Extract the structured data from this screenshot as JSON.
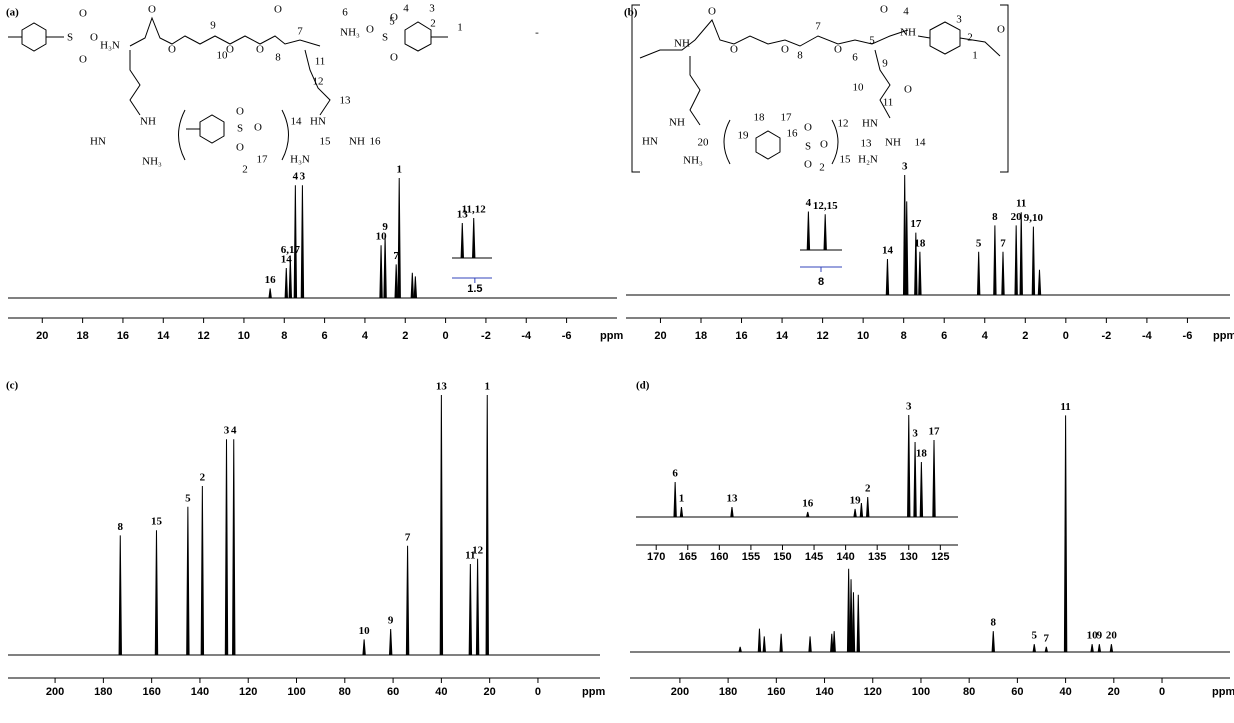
{
  "panels": [
    {
      "label": "(a)",
      "axis_title": "ppm",
      "xlim": [
        21.7,
        -8.5
      ],
      "xticks": [
        20,
        18,
        16,
        14,
        12,
        10,
        8,
        6,
        4,
        2,
        0,
        -2,
        -4,
        -6
      ],
      "peaks": [
        {
          "label": "16",
          "x": 8.7,
          "h": 8
        },
        {
          "label": "14",
          "x": 7.9,
          "h": 25
        },
        {
          "label": "6,17",
          "x": 7.7,
          "h": 33
        },
        {
          "label": "4",
          "x": 7.45,
          "h": 94
        },
        {
          "label": "3",
          "x": 7.1,
          "h": 94
        },
        {
          "label": "10",
          "x": 3.2,
          "h": 44
        },
        {
          "label": "9",
          "x": 3.0,
          "h": 52
        },
        {
          "label": "7",
          "x": 2.45,
          "h": 28
        },
        {
          "label": "1",
          "x": 2.3,
          "h": 100
        },
        {
          "label": null,
          "x": 1.65,
          "h": 21
        },
        {
          "label": null,
          "x": 1.5,
          "h": 18
        }
      ],
      "inset": {
        "xlim": [
          1.9,
          1.2
        ],
        "xticks": [
          1.5
        ],
        "peaks": [
          {
            "label": "13",
            "x": 1.72,
            "h": 70
          },
          {
            "label": "11,12",
            "x": 1.52,
            "h": 80
          }
        ]
      },
      "structure_labels": [
        "S",
        "O",
        "O",
        "O",
        "H₃N",
        "O",
        "O",
        "9",
        "O",
        "10",
        "O",
        "8",
        "O",
        "7",
        "6",
        "NH₃",
        "O",
        "S",
        "O",
        "O",
        "4",
        "5",
        "3",
        "2",
        "1",
        "11",
        "12",
        "13",
        "NH",
        "HN",
        "NH₃",
        "14",
        "HN",
        "15",
        "NH",
        "16",
        "H₃N",
        "17",
        "2",
        "S",
        "O",
        "O",
        "O",
        "-"
      ]
    },
    {
      "label": "(b)",
      "axis_title": "ppm",
      "xlim": [
        21.7,
        -8.1
      ],
      "xticks": [
        20,
        18,
        16,
        14,
        12,
        10,
        8,
        6,
        4,
        2,
        0,
        -2,
        -4,
        -6
      ],
      "peaks": [
        {
          "label": "14",
          "x": 8.8,
          "h": 30
        },
        {
          "label": "3",
          "x": 7.95,
          "h": 100
        },
        {
          "label": null,
          "x": 7.85,
          "h": 78
        },
        {
          "label": "17",
          "x": 7.4,
          "h": 52
        },
        {
          "label": "18",
          "x": 7.2,
          "h": 36
        },
        {
          "label": "5",
          "x": 4.3,
          "h": 36
        },
        {
          "label": "8",
          "x": 3.5,
          "h": 58
        },
        {
          "label": "7",
          "x": 3.1,
          "h": 36
        },
        {
          "label": "20",
          "x": 2.45,
          "h": 58
        },
        {
          "label": "11",
          "x": 2.2,
          "h": 69
        },
        {
          "label": "9,10",
          "x": 1.6,
          "h": 57
        },
        {
          "label": null,
          "x": 1.3,
          "h": 21
        }
      ],
      "inset": {
        "xlim": [
          8.5,
          7.5
        ],
        "xticks": [
          8
        ],
        "peaks": [
          {
            "label": "4",
            "x": 8.3,
            "h": 70
          },
          {
            "label": "12,15",
            "x": 7.9,
            "h": 65
          }
        ]
      },
      "structure_labels": [
        "NH",
        "O",
        "O",
        "O",
        "8",
        "7",
        "O",
        "6",
        "O",
        "5",
        "4",
        "NH",
        "9",
        "3",
        "2",
        "1",
        "O",
        "O",
        "10",
        "11",
        "12",
        "HN",
        "13",
        "NH",
        "14",
        "15",
        "H₂N",
        "NH",
        "HN",
        "NH₃",
        "20",
        "18",
        "17",
        "19",
        "16",
        "S",
        "O",
        "O",
        "O",
        "2"
      ]
    },
    {
      "label": "(c)",
      "axis_title": "ppm",
      "xlim": [
        219.5,
        -25.7
      ],
      "xticks": [
        200,
        180,
        160,
        140,
        120,
        100,
        80,
        60,
        40,
        20,
        0
      ],
      "peaks": [
        {
          "label": "8",
          "x": 173,
          "h": 46
        },
        {
          "label": "15",
          "x": 158,
          "h": 48
        },
        {
          "label": "5",
          "x": 145,
          "h": 57
        },
        {
          "label": "2",
          "x": 139,
          "h": 65
        },
        {
          "label": "3",
          "x": 129,
          "h": 83
        },
        {
          "label": "4",
          "x": 126,
          "h": 83
        },
        {
          "label": "10",
          "x": 72,
          "h": 6
        },
        {
          "label": "9",
          "x": 61,
          "h": 10
        },
        {
          "label": "7",
          "x": 54,
          "h": 42
        },
        {
          "label": "13",
          "x": 40,
          "h": 100
        },
        {
          "label": "11",
          "x": 28,
          "h": 35
        },
        {
          "label": "12",
          "x": 25,
          "h": 37
        },
        {
          "label": "1",
          "x": 21,
          "h": 100
        }
      ]
    },
    {
      "label": "(d)",
      "axis_title": "ppm",
      "xlim": [
        220.7,
        -28.2
      ],
      "xticks": [
        200,
        180,
        160,
        140,
        120,
        100,
        80,
        60,
        40,
        20,
        0
      ],
      "peaks": [
        {
          "label": null,
          "x": 175,
          "h": 2
        },
        {
          "label": null,
          "x": 167,
          "h": 9
        },
        {
          "label": null,
          "x": 165,
          "h": 6
        },
        {
          "label": null,
          "x": 158,
          "h": 7
        },
        {
          "label": null,
          "x": 146,
          "h": 6
        },
        {
          "label": null,
          "x": 137,
          "h": 7
        },
        {
          "label": null,
          "x": 136,
          "h": 8
        },
        {
          "label": null,
          "x": 130,
          "h": 32
        },
        {
          "label": null,
          "x": 129,
          "h": 28
        },
        {
          "label": null,
          "x": 128,
          "h": 23
        },
        {
          "label": null,
          "x": 126,
          "h": 22
        },
        {
          "label": "8",
          "x": 70,
          "h": 8
        },
        {
          "label": "5",
          "x": 53,
          "h": 3
        },
        {
          "label": "7",
          "x": 48,
          "h": 2
        },
        {
          "label": "11",
          "x": 40,
          "h": 91
        },
        {
          "label": "10",
          "x": 29,
          "h": 3
        },
        {
          "label": "9",
          "x": 26,
          "h": 3
        },
        {
          "label": "20",
          "x": 21,
          "h": 3
        }
      ],
      "inset": {
        "xlim": [
          173.2,
          122.2
        ],
        "xticks": [
          170,
          165,
          160,
          155,
          150,
          145,
          140,
          135,
          130,
          125
        ],
        "peaks": [
          {
            "label": "6",
            "x": 167,
            "h": 35
          },
          {
            "label": "1",
            "x": 166,
            "h": 10
          },
          {
            "label": "13",
            "x": 158,
            "h": 10
          },
          {
            "label": "16",
            "x": 146,
            "h": 5
          },
          {
            "label": "19",
            "x": 138.5,
            "h": 8
          },
          {
            "label": null,
            "x": 137.5,
            "h": 14
          },
          {
            "label": "2",
            "x": 136.5,
            "h": 20
          },
          {
            "label": "3",
            "x": 130,
            "h": 102
          },
          {
            "label": "3",
            "x": 129,
            "h": 75
          },
          {
            "label": "18",
            "x": 128,
            "h": 55
          },
          {
            "label": "17",
            "x": 126,
            "h": 77
          }
        ]
      }
    }
  ]
}
